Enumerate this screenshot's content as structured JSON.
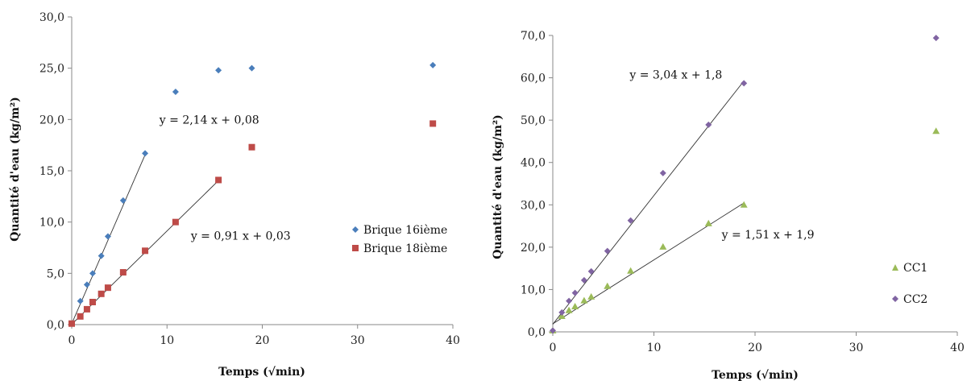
{
  "chart_data": [
    {
      "type": "scatter",
      "xlabel": "Temps (√min)",
      "ylabel": "Quantité d'eau (kg/m²)",
      "xlim": [
        0,
        40
      ],
      "ylim": [
        0,
        30
      ],
      "x_ticks": [
        "0",
        "10",
        "20",
        "30",
        "40"
      ],
      "y_ticks": [
        "0,0",
        "5,0",
        "10,0",
        "15,0",
        "20,0",
        "25,0",
        "30,0"
      ],
      "grid": false,
      "legend_position": "right",
      "series": [
        {
          "name": "Brique 16ième",
          "color": "#4a7ebb",
          "marker": "diamond",
          "points": [
            [
              0,
              0.1
            ],
            [
              0.9,
              2.3
            ],
            [
              1.6,
              3.9
            ],
            [
              2.2,
              5.0
            ],
            [
              3.1,
              6.7
            ],
            [
              3.8,
              8.6
            ],
            [
              5.4,
              12.1
            ],
            [
              7.7,
              16.7
            ],
            [
              10.9,
              22.7
            ],
            [
              15.4,
              24.8
            ],
            [
              18.9,
              25.0
            ],
            [
              37.9,
              25.3
            ]
          ]
        },
        {
          "name": "Brique 18ième",
          "color": "#be4b48",
          "marker": "square",
          "points": [
            [
              0,
              0.1
            ],
            [
              0.9,
              0.8
            ],
            [
              1.6,
              1.5
            ],
            [
              2.2,
              2.2
            ],
            [
              3.1,
              3.0
            ],
            [
              3.8,
              3.6
            ],
            [
              5.4,
              5.1
            ],
            [
              7.7,
              7.2
            ],
            [
              10.9,
              10.0
            ],
            [
              15.4,
              14.1
            ],
            [
              18.9,
              17.3
            ],
            [
              37.9,
              19.6
            ]
          ]
        }
      ],
      "trendlines": [
        {
          "equation": "y = 2,14 x + 0,08",
          "slope": 2.14,
          "intercept": 0.08,
          "x_range": [
            0,
            7.7
          ],
          "label_x": 9.2,
          "label_y": 19.6
        },
        {
          "equation": "y = 0,91 x + 0,03",
          "slope": 0.91,
          "intercept": 0.03,
          "x_range": [
            0,
            15.4
          ],
          "label_x": 12.5,
          "label_y": 8.3
        }
      ]
    },
    {
      "type": "scatter",
      "xlabel": "Temps (√min)",
      "ylabel": "Quantité d'eau (kg/m²)",
      "xlim": [
        0,
        40
      ],
      "ylim": [
        0,
        70
      ],
      "x_ticks": [
        "0",
        "10",
        "20",
        "30",
        "40"
      ],
      "y_ticks": [
        "0,0",
        "10,0",
        "20,0",
        "30,0",
        "40,0",
        "50,0",
        "60,0",
        "70,0"
      ],
      "grid": false,
      "legend_position": "right",
      "series": [
        {
          "name": "CC1",
          "color": "#9bbb59",
          "marker": "triangle",
          "points": [
            [
              0,
              0.3
            ],
            [
              0.9,
              3.7
            ],
            [
              1.6,
              5.1
            ],
            [
              2.2,
              6.0
            ],
            [
              3.1,
              7.4
            ],
            [
              3.8,
              8.3
            ],
            [
              5.4,
              10.8
            ],
            [
              7.7,
              14.4
            ],
            [
              10.9,
              20.1
            ],
            [
              15.4,
              25.6
            ],
            [
              18.9,
              30.0
            ],
            [
              37.9,
              47.4
            ]
          ]
        },
        {
          "name": "CC2",
          "color": "#8064a2",
          "marker": "diamond",
          "points": [
            [
              0,
              0.3
            ],
            [
              0.9,
              4.6
            ],
            [
              1.6,
              7.3
            ],
            [
              2.2,
              9.2
            ],
            [
              3.1,
              12.2
            ],
            [
              3.8,
              14.3
            ],
            [
              5.4,
              19.1
            ],
            [
              7.7,
              26.3
            ],
            [
              10.9,
              37.5
            ],
            [
              15.4,
              48.9
            ],
            [
              18.9,
              58.7
            ],
            [
              37.9,
              69.4
            ]
          ]
        }
      ],
      "trendlines": [
        {
          "equation": "y = 3,04 x + 1,8",
          "slope": 3.04,
          "intercept": 1.8,
          "x_range": [
            0,
            18.9
          ],
          "label_x": 7.6,
          "label_y": 59.8
        },
        {
          "equation": "y = 1,51 x + 1,9",
          "slope": 1.51,
          "intercept": 1.9,
          "x_range": [
            0,
            18.9
          ],
          "label_x": 16.7,
          "label_y": 22.1
        }
      ]
    }
  ]
}
